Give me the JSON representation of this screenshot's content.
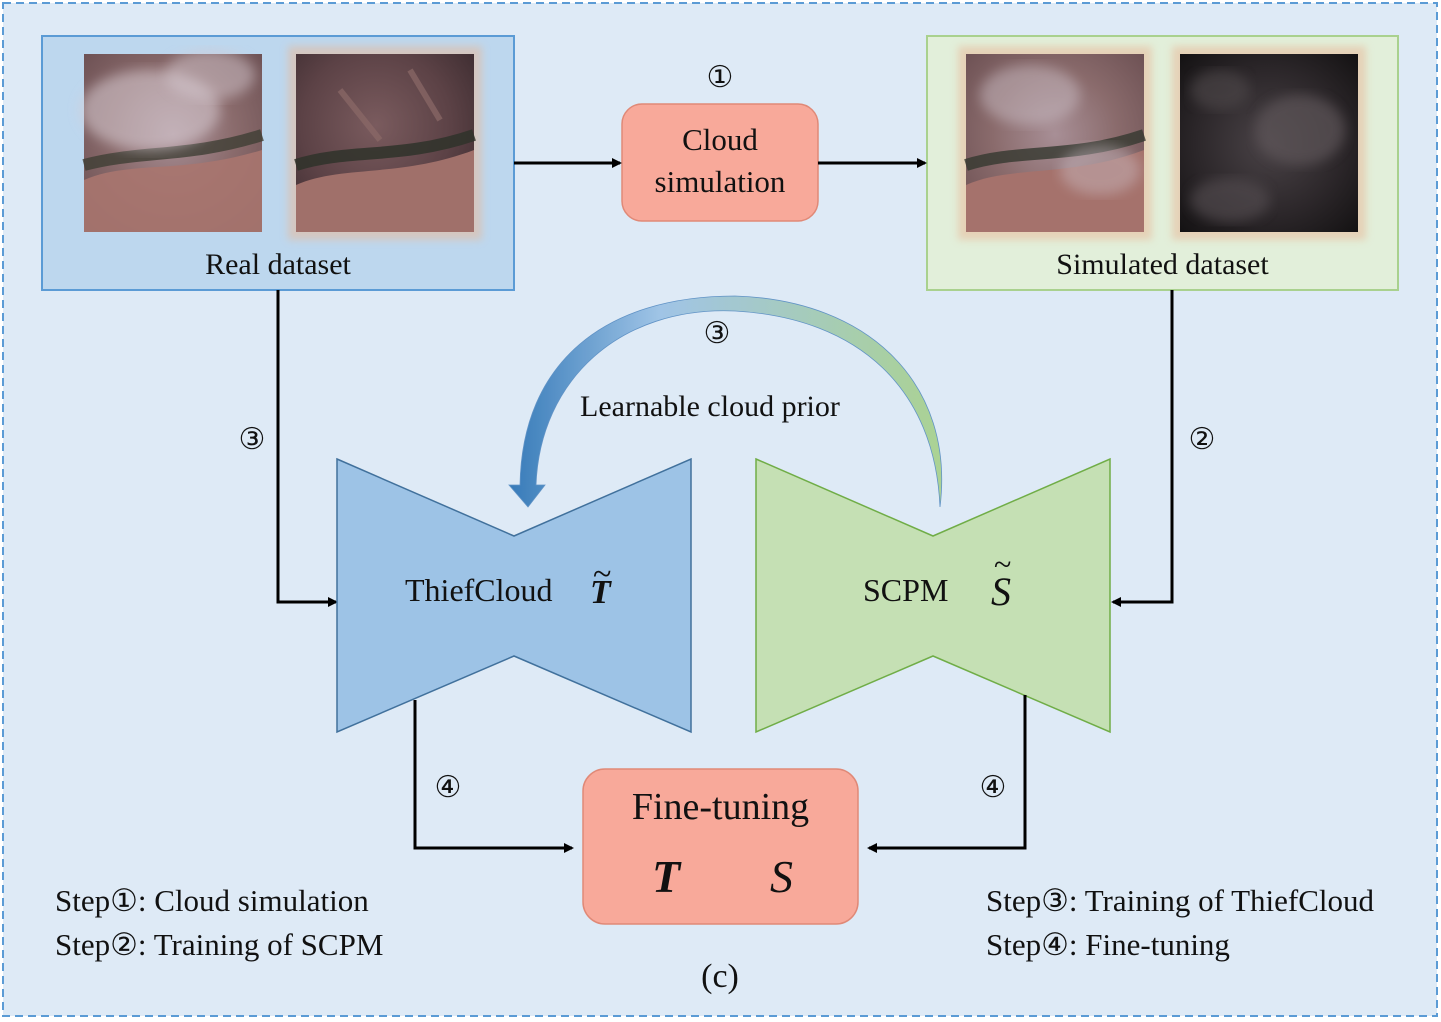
{
  "colors": {
    "frame_bg": "#deeaf6",
    "frame_border": "#5b9bd5",
    "real_box_fill": "#bdd7ee",
    "real_box_stroke": "#5b9bd5",
    "sim_box_fill": "#e2efda",
    "sim_box_stroke": "#a9d18e",
    "salmon": "#f8a99a",
    "salmon_stroke": "#e08977",
    "thief_fill": "#9dc3e6",
    "thief_stroke": "#41719c",
    "scpm_fill": "#c5e0b4",
    "scpm_stroke": "#70ad47"
  },
  "real_dataset": {
    "label": "Real dataset"
  },
  "simulated_dataset": {
    "label": "Simulated dataset"
  },
  "cloud_simulation": {
    "line1": "Cloud",
    "line2": "simulation",
    "step_marker": "①"
  },
  "learnable_prior": {
    "label": "Learnable cloud prior",
    "step_marker": "③"
  },
  "thiefcloud": {
    "label": "ThiefCloud",
    "symbol": "T",
    "tilde": "~"
  },
  "scpm": {
    "label": "SCPM",
    "symbol": "S",
    "tilde": "~"
  },
  "fine_tuning": {
    "title": "Fine-tuning",
    "sym_t": "T",
    "sym_s": "S"
  },
  "markers": {
    "left_vertical": "③",
    "right_vertical": "②",
    "bottom_left": "④",
    "bottom_right": "④"
  },
  "legend": {
    "step1": "Step①: Cloud simulation",
    "step2": "Step②: Training of SCPM",
    "step3": "Step③: Training of ThiefCloud",
    "step4": "Step④: Fine-tuning"
  },
  "caption": "(c)",
  "images": [
    {
      "name": "real-cloudy-image",
      "alt": "cloudy satellite image"
    },
    {
      "name": "real-clear-image",
      "alt": "clear satellite image"
    },
    {
      "name": "simulated-cloudy-image",
      "alt": "simulated cloudy satellite image"
    },
    {
      "name": "simulated-cloud-mask-image",
      "alt": "simulated cloud layer"
    }
  ]
}
